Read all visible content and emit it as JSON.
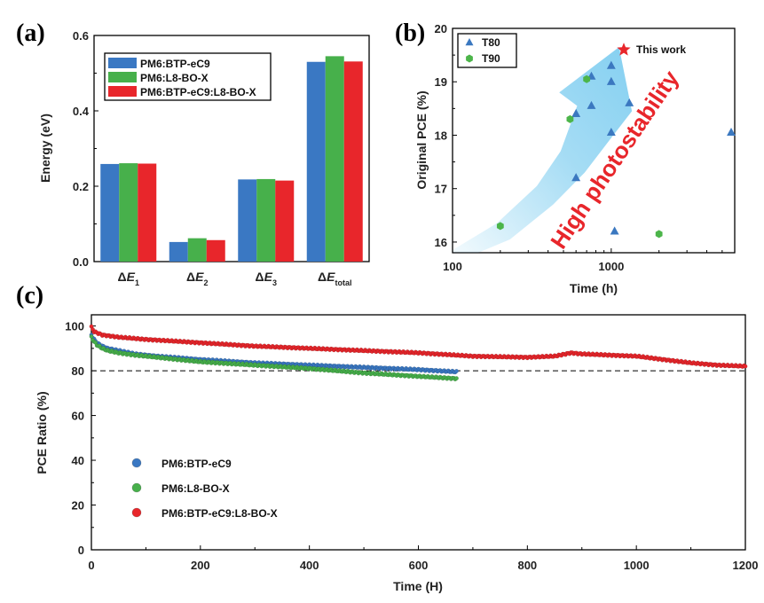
{
  "panels": {
    "a": "(a)",
    "b": "(b)",
    "c": "(c)"
  },
  "colors": {
    "blue": "#3a78c3",
    "green": "#47b04b",
    "red": "#e8262b",
    "arrow": "#5cc0ec",
    "tri": "#3b78c0",
    "hex": "#4cb54a",
    "star": "#e8262b"
  },
  "chart_data": [
    {
      "type": "bar",
      "panel": "a",
      "title": "",
      "ylabel": "Energy (eV)",
      "ylim": [
        0,
        0.6
      ],
      "yticks": [
        "0.0",
        "0.2",
        "0.4",
        "0.6"
      ],
      "categories": [
        {
          "sym": "ΔE",
          "sub": "1"
        },
        {
          "sym": "ΔE",
          "sub": "2"
        },
        {
          "sym": "ΔE",
          "sub": "3"
        },
        {
          "sym": "ΔE",
          "sub": "total"
        }
      ],
      "series": [
        {
          "name": "PM6:BTP-eC9",
          "color": "#3a78c3",
          "values": [
            0.259,
            0.052,
            0.218,
            0.53
          ]
        },
        {
          "name": "PM6:L8-BO-X",
          "color": "#47b04b",
          "values": [
            0.261,
            0.062,
            0.219,
            0.545
          ]
        },
        {
          "name": "PM6:BTP-eC9:L8-BO-X",
          "color": "#e8262b",
          "values": [
            0.26,
            0.057,
            0.215,
            0.531
          ]
        }
      ],
      "legend": "top-left"
    },
    {
      "type": "scatter",
      "panel": "b",
      "xlabel": "Time (h)",
      "ylabel": "Original PCE (%)",
      "xscale": "log",
      "xlim": [
        100,
        6000
      ],
      "ylim": [
        15.8,
        20
      ],
      "xticks": [
        "100",
        "1000"
      ],
      "yticks": [
        "16",
        "17",
        "18",
        "19",
        "20"
      ],
      "series": [
        {
          "name": "T80",
          "marker": "triangle",
          "points": [
            [
              600,
              18.4
            ],
            [
              600,
              17.2
            ],
            [
              750,
              19.1
            ],
            [
              750,
              18.55
            ],
            [
              1000,
              19.3
            ],
            [
              1000,
              19.0
            ],
            [
              1000,
              18.05
            ],
            [
              1050,
              16.2
            ],
            [
              1300,
              18.6
            ],
            [
              5700,
              18.05
            ]
          ]
        },
        {
          "name": "T90",
          "marker": "hexagon",
          "points": [
            [
              200,
              16.3
            ],
            [
              550,
              18.3
            ],
            [
              700,
              19.05
            ],
            [
              2000,
              16.15
            ]
          ]
        }
      ],
      "highlight": {
        "label": "This work",
        "point": [
          1200,
          19.6
        ]
      },
      "annotation": "High photostability",
      "legend": "top-left"
    },
    {
      "type": "scatter",
      "panel": "c",
      "xlabel": "Time (H)",
      "ylabel": "PCE Ratio (%)",
      "xlim": [
        0,
        1200
      ],
      "ylim": [
        0,
        105
      ],
      "xticks": [
        "0",
        "200",
        "400",
        "600",
        "800",
        "1000",
        "1200"
      ],
      "yticks": [
        "0",
        "20",
        "40",
        "60",
        "80",
        "100"
      ],
      "reference_line": 80,
      "series": [
        {
          "name": "PM6:BTP-eC9",
          "color": "#3a78c3",
          "x": [
            0,
            5,
            10,
            20,
            30,
            50,
            80,
            120,
            200,
            300,
            400,
            500,
            600,
            670
          ],
          "y": [
            96,
            94,
            92.5,
            91,
            90,
            89,
            87.5,
            86.5,
            85,
            83.5,
            82.5,
            81.5,
            80.5,
            79.5
          ]
        },
        {
          "name": "PM6:L8-BO-X",
          "color": "#47b04b",
          "x": [
            0,
            5,
            10,
            20,
            30,
            50,
            80,
            120,
            200,
            300,
            400,
            500,
            600,
            670
          ],
          "y": [
            95,
            93,
            91.5,
            90,
            89,
            88,
            87,
            86,
            84,
            82.5,
            81,
            79,
            77.5,
            76.5
          ]
        },
        {
          "name": "PM6:BTP-eC9:L8-BO-X",
          "color": "#e8262b",
          "x": [
            0,
            5,
            10,
            20,
            50,
            100,
            200,
            300,
            400,
            500,
            600,
            700,
            800,
            850,
            880,
            900,
            950,
            1000,
            1050,
            1100,
            1150,
            1200
          ],
          "y": [
            99.5,
            97.5,
            97,
            96,
            95,
            94,
            92.5,
            91,
            90,
            89,
            88,
            86.5,
            86,
            86.5,
            88,
            87.5,
            87,
            86.5,
            85,
            83.5,
            82.5,
            82
          ]
        }
      ],
      "legend": "bottom-left"
    }
  ]
}
